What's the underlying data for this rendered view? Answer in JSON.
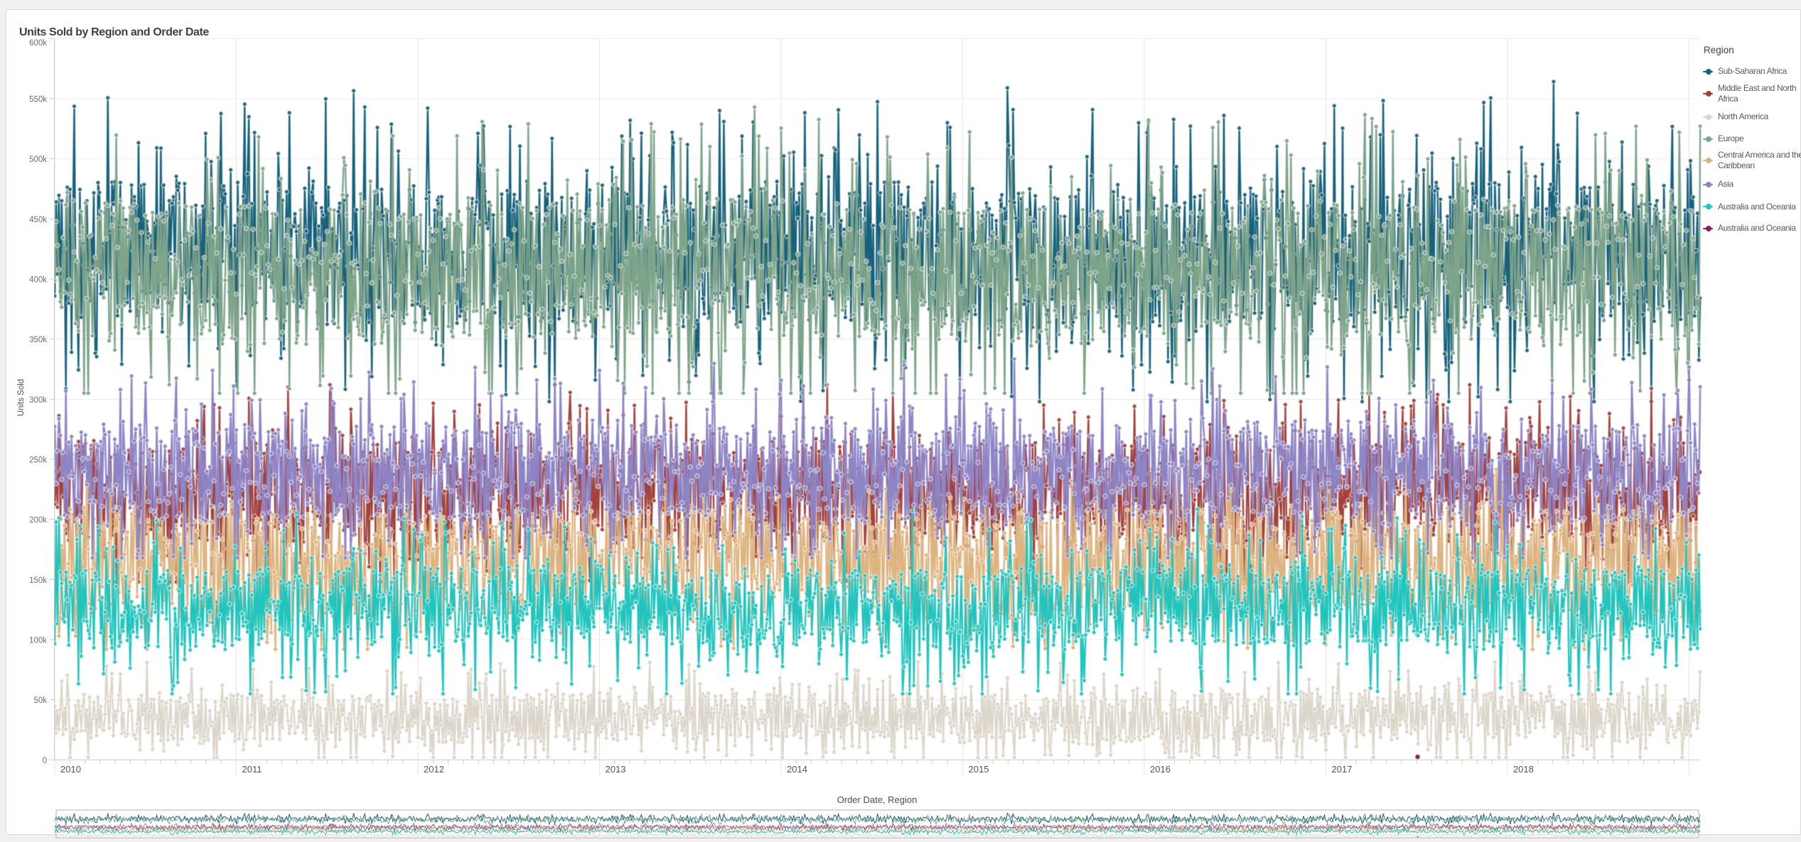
{
  "title": "Units Sold by Region and Order Date",
  "y_axis": {
    "title": "Units Sold",
    "tick_labels": [
      "0",
      "50k",
      "100k",
      "150k",
      "200k",
      "250k",
      "300k",
      "350k",
      "400k",
      "450k",
      "500k",
      "550k",
      "600k"
    ],
    "min": 0,
    "max": 600000,
    "step": 50000
  },
  "x_axis": {
    "title": "Order Date, Region",
    "tick_labels": [
      "2010",
      "2011",
      "2012",
      "2013",
      "2014",
      "2015",
      "2016",
      "2017",
      "2018"
    ],
    "start_year": 2010,
    "end_year": 2019,
    "minor_ticks_per_year": 12
  },
  "legend": {
    "title": "Region",
    "items": [
      {
        "label": "Sub-Saharan Africa",
        "lines": [
          "Sub-Saharan Africa"
        ],
        "color": "#14627b"
      },
      {
        "label": "Middle East and North Africa",
        "lines": [
          "Middle East and North",
          "Africa"
        ],
        "color": "#a2423d"
      },
      {
        "label": "North America",
        "lines": [
          "North America"
        ],
        "color": "#dcd6ca"
      },
      {
        "label": "Europe",
        "lines": [
          "Europe"
        ],
        "color": "#7ea48a"
      },
      {
        "label": "Central America and the Caribbean",
        "lines": [
          "Central America and the",
          "Caribbean"
        ],
        "color": "#ddb480"
      },
      {
        "label": "Asia",
        "lines": [
          "Asia"
        ],
        "color": "#8d85c6"
      },
      {
        "label": "Australia and Oceania",
        "lines": [
          "Australia and Oceania"
        ],
        "color": "#20c5be"
      },
      {
        "label": "Australia and Oceania",
        "lines": [
          "Australia and Oceania"
        ],
        "color": "#8a1e60"
      }
    ]
  },
  "chart_data": {
    "type": "line",
    "title": "Units Sold by Region and Order Date",
    "xlabel": "Order Date, Region",
    "ylabel": "Units Sold",
    "ylim": [
      0,
      600000
    ],
    "xlim_years": [
      2010,
      2019.06
    ],
    "x_unit": "weekly order dates, 2010 through 2018",
    "grid": true,
    "legend_position": "right",
    "marker": "dot",
    "series": [
      {
        "name": "Sub-Saharan Africa",
        "color": "#14627b",
        "points_per_year": 130,
        "mean": 419000,
        "core_spread": 59000,
        "core_band": [
          358000,
          476000
        ],
        "extremes": [
          298000,
          578000
        ],
        "tail": 86000,
        "p_tail": 0.25,
        "seed": 101
      },
      {
        "name": "Middle East and North Africa",
        "color": "#a2423d",
        "points_per_year": 130,
        "mean": 222000,
        "core_spread": 43000,
        "core_band": [
          179000,
          265000
        ],
        "extremes": [
          148000,
          312000
        ],
        "tail": 52000,
        "p_tail": 0.26,
        "seed": 202
      },
      {
        "name": "North America",
        "color": "#dcd6ca",
        "points_per_year": 130,
        "mean": 35000,
        "core_spread": 20000,
        "core_band": [
          15000,
          55000
        ],
        "extremes": [
          2000,
          88000
        ],
        "tail": 30000,
        "p_tail": 0.26,
        "seed": 303
      },
      {
        "name": "Europe",
        "color": "#7ea48a",
        "points_per_year": 130,
        "mean": 406000,
        "core_spread": 57000,
        "core_band": [
          351000,
          465000
        ],
        "extremes": [
          305000,
          556000
        ],
        "tail": 82000,
        "p_tail": 0.25,
        "seed": 404
      },
      {
        "name": "Central America and the Caribbean",
        "color": "#ddb480",
        "points_per_year": 130,
        "mean": 165000,
        "core_spread": 45000,
        "core_band": [
          120000,
          210000
        ],
        "extremes": [
          92000,
          248000
        ],
        "tail": 42000,
        "p_tail": 0.24,
        "seed": 505
      },
      {
        "name": "Asia",
        "color": "#8d85c6",
        "points_per_year": 130,
        "mean": 240000,
        "core_spread": 40000,
        "core_band": [
          200000,
          280000
        ],
        "extremes": [
          168000,
          348000
        ],
        "tail": 58000,
        "p_tail": 0.26,
        "seed": 606
      },
      {
        "name": "Australia and Oceania",
        "color": "#20c5be",
        "points_per_year": 130,
        "mean": 127000,
        "core_spread": 33000,
        "core_band": [
          94000,
          160000
        ],
        "extremes": [
          55000,
          212000
        ],
        "tail": 54000,
        "p_tail": 0.26,
        "seed": 707
      }
    ],
    "isolated_points": [
      {
        "name": "Australia and Oceania",
        "color": "#8a1e60",
        "year": 2017.505,
        "value": 2500
      }
    ]
  },
  "navigator": {
    "purpose": "range overview of full 2010-2018 period, all regions"
  },
  "colors": {
    "page_bg": "#f0f0f0",
    "panel_bg": "#ffffff",
    "panel_border": "#d9d9d9",
    "grid_h": "#ececec",
    "grid_v": "#e6e6e6",
    "axis_line": "#cccccc",
    "y_tick_label": "#6e6e6e",
    "x_tick_label": "#545454",
    "axis_title": "#4d4d4d",
    "title": "#404040",
    "legend_title": "#404040",
    "legend_text": "#595959",
    "nav_border": "#b0b0b0"
  }
}
